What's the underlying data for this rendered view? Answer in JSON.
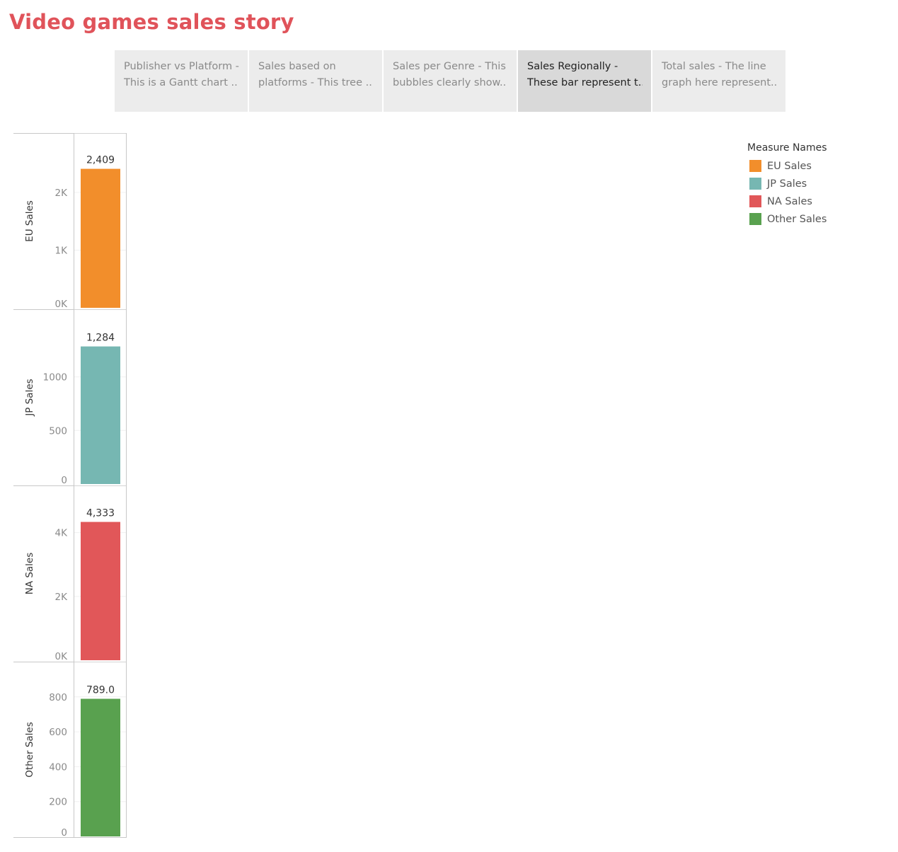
{
  "story": {
    "title": "Video games sales story",
    "points": [
      {
        "line1": "Publisher vs Platform -",
        "line2": "This is a Gantt chart ..",
        "active": false
      },
      {
        "line1": "Sales based on",
        "line2": "platforms - This tree ..",
        "active": false
      },
      {
        "line1": "Sales per Genre - This",
        "line2": "bubbles clearly show..",
        "active": false
      },
      {
        "line1": "Sales Regionally -",
        "line2": "These bar represent t..",
        "active": true
      },
      {
        "line1": "Total sales - The line",
        "line2": "graph here represent..",
        "active": false
      }
    ]
  },
  "legend": {
    "title": "Measure Names",
    "items": [
      {
        "label": "EU Sales",
        "color": "#f28e2b"
      },
      {
        "label": "JP Sales",
        "color": "#76b7b2"
      },
      {
        "label": "NA Sales",
        "color": "#e15759"
      },
      {
        "label": "Other Sales",
        "color": "#59a14f"
      }
    ]
  },
  "chart_data": {
    "type": "bar",
    "grid": true,
    "legend_position": "top-right",
    "panels": [
      {
        "name": "EU Sales",
        "ylabel": "EU Sales",
        "value": 2409,
        "value_label": "2,409",
        "color": "#f28e2b",
        "ylim": [
          0,
          2600
        ],
        "ticks": [
          0,
          1000,
          2000
        ],
        "tick_labels": [
          "0K",
          "1K",
          "2K"
        ]
      },
      {
        "name": "JP Sales",
        "ylabel": "JP Sales",
        "value": 1284,
        "value_label": "1,284",
        "color": "#76b7b2",
        "ylim": [
          0,
          1400
        ],
        "ticks": [
          0,
          500,
          1000
        ],
        "tick_labels": [
          "0",
          "500",
          "1000"
        ]
      },
      {
        "name": "NA Sales",
        "ylabel": "NA Sales",
        "value": 4333,
        "value_label": "4,333",
        "color": "#e15759",
        "ylim": [
          0,
          4700
        ],
        "ticks": [
          0,
          2000,
          4000
        ],
        "tick_labels": [
          "0K",
          "2K",
          "4K"
        ]
      },
      {
        "name": "Other Sales",
        "ylabel": "Other Sales",
        "value": 789,
        "value_label": "789.0",
        "color": "#59a14f",
        "ylim": [
          0,
          860
        ],
        "ticks": [
          0,
          200,
          400,
          600,
          800
        ],
        "tick_labels": [
          "0",
          "200",
          "400",
          "600",
          "800"
        ]
      }
    ]
  }
}
